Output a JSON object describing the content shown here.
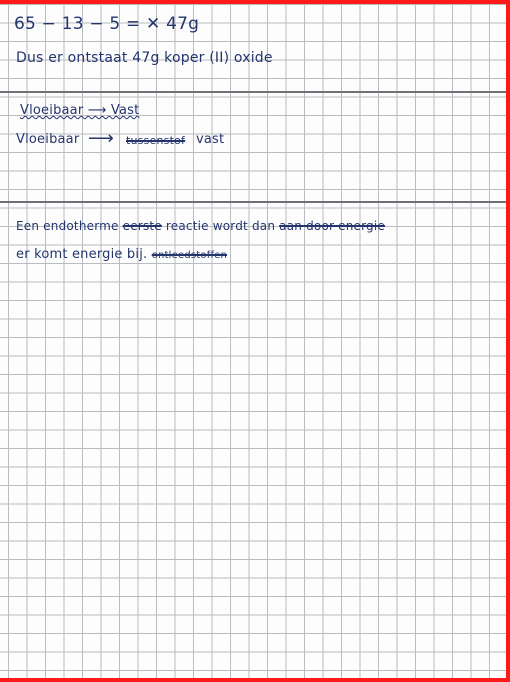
{
  "page": {
    "paper": "grid",
    "grid_color": "#b9bcc0",
    "ink_color": "#24356e",
    "border_color": "#ff1a1a"
  },
  "answers": [
    {
      "lines": [
        {
          "text": "65 − 13 − 5 = ✕ 47g"
        },
        {
          "text": "Dus er ontstaat 47g koper (II) oxide"
        }
      ]
    },
    {
      "lines": [
        {
          "text": "Vloeibaar ⟶ Vast",
          "style": "scribbled"
        },
        {
          "left": "Vloeibaar",
          "arrow": "⟶",
          "struck": "tussenstof",
          "right": "vast"
        }
      ]
    },
    {
      "lines": [
        {
          "pre": "Een endotherme",
          "struck": "eerste",
          "post": "reactie wordt dan",
          "struck2": "aan door energie"
        },
        {
          "text": "er komt energie bij.",
          "struck": "ontleedstoffen"
        }
      ]
    }
  ]
}
